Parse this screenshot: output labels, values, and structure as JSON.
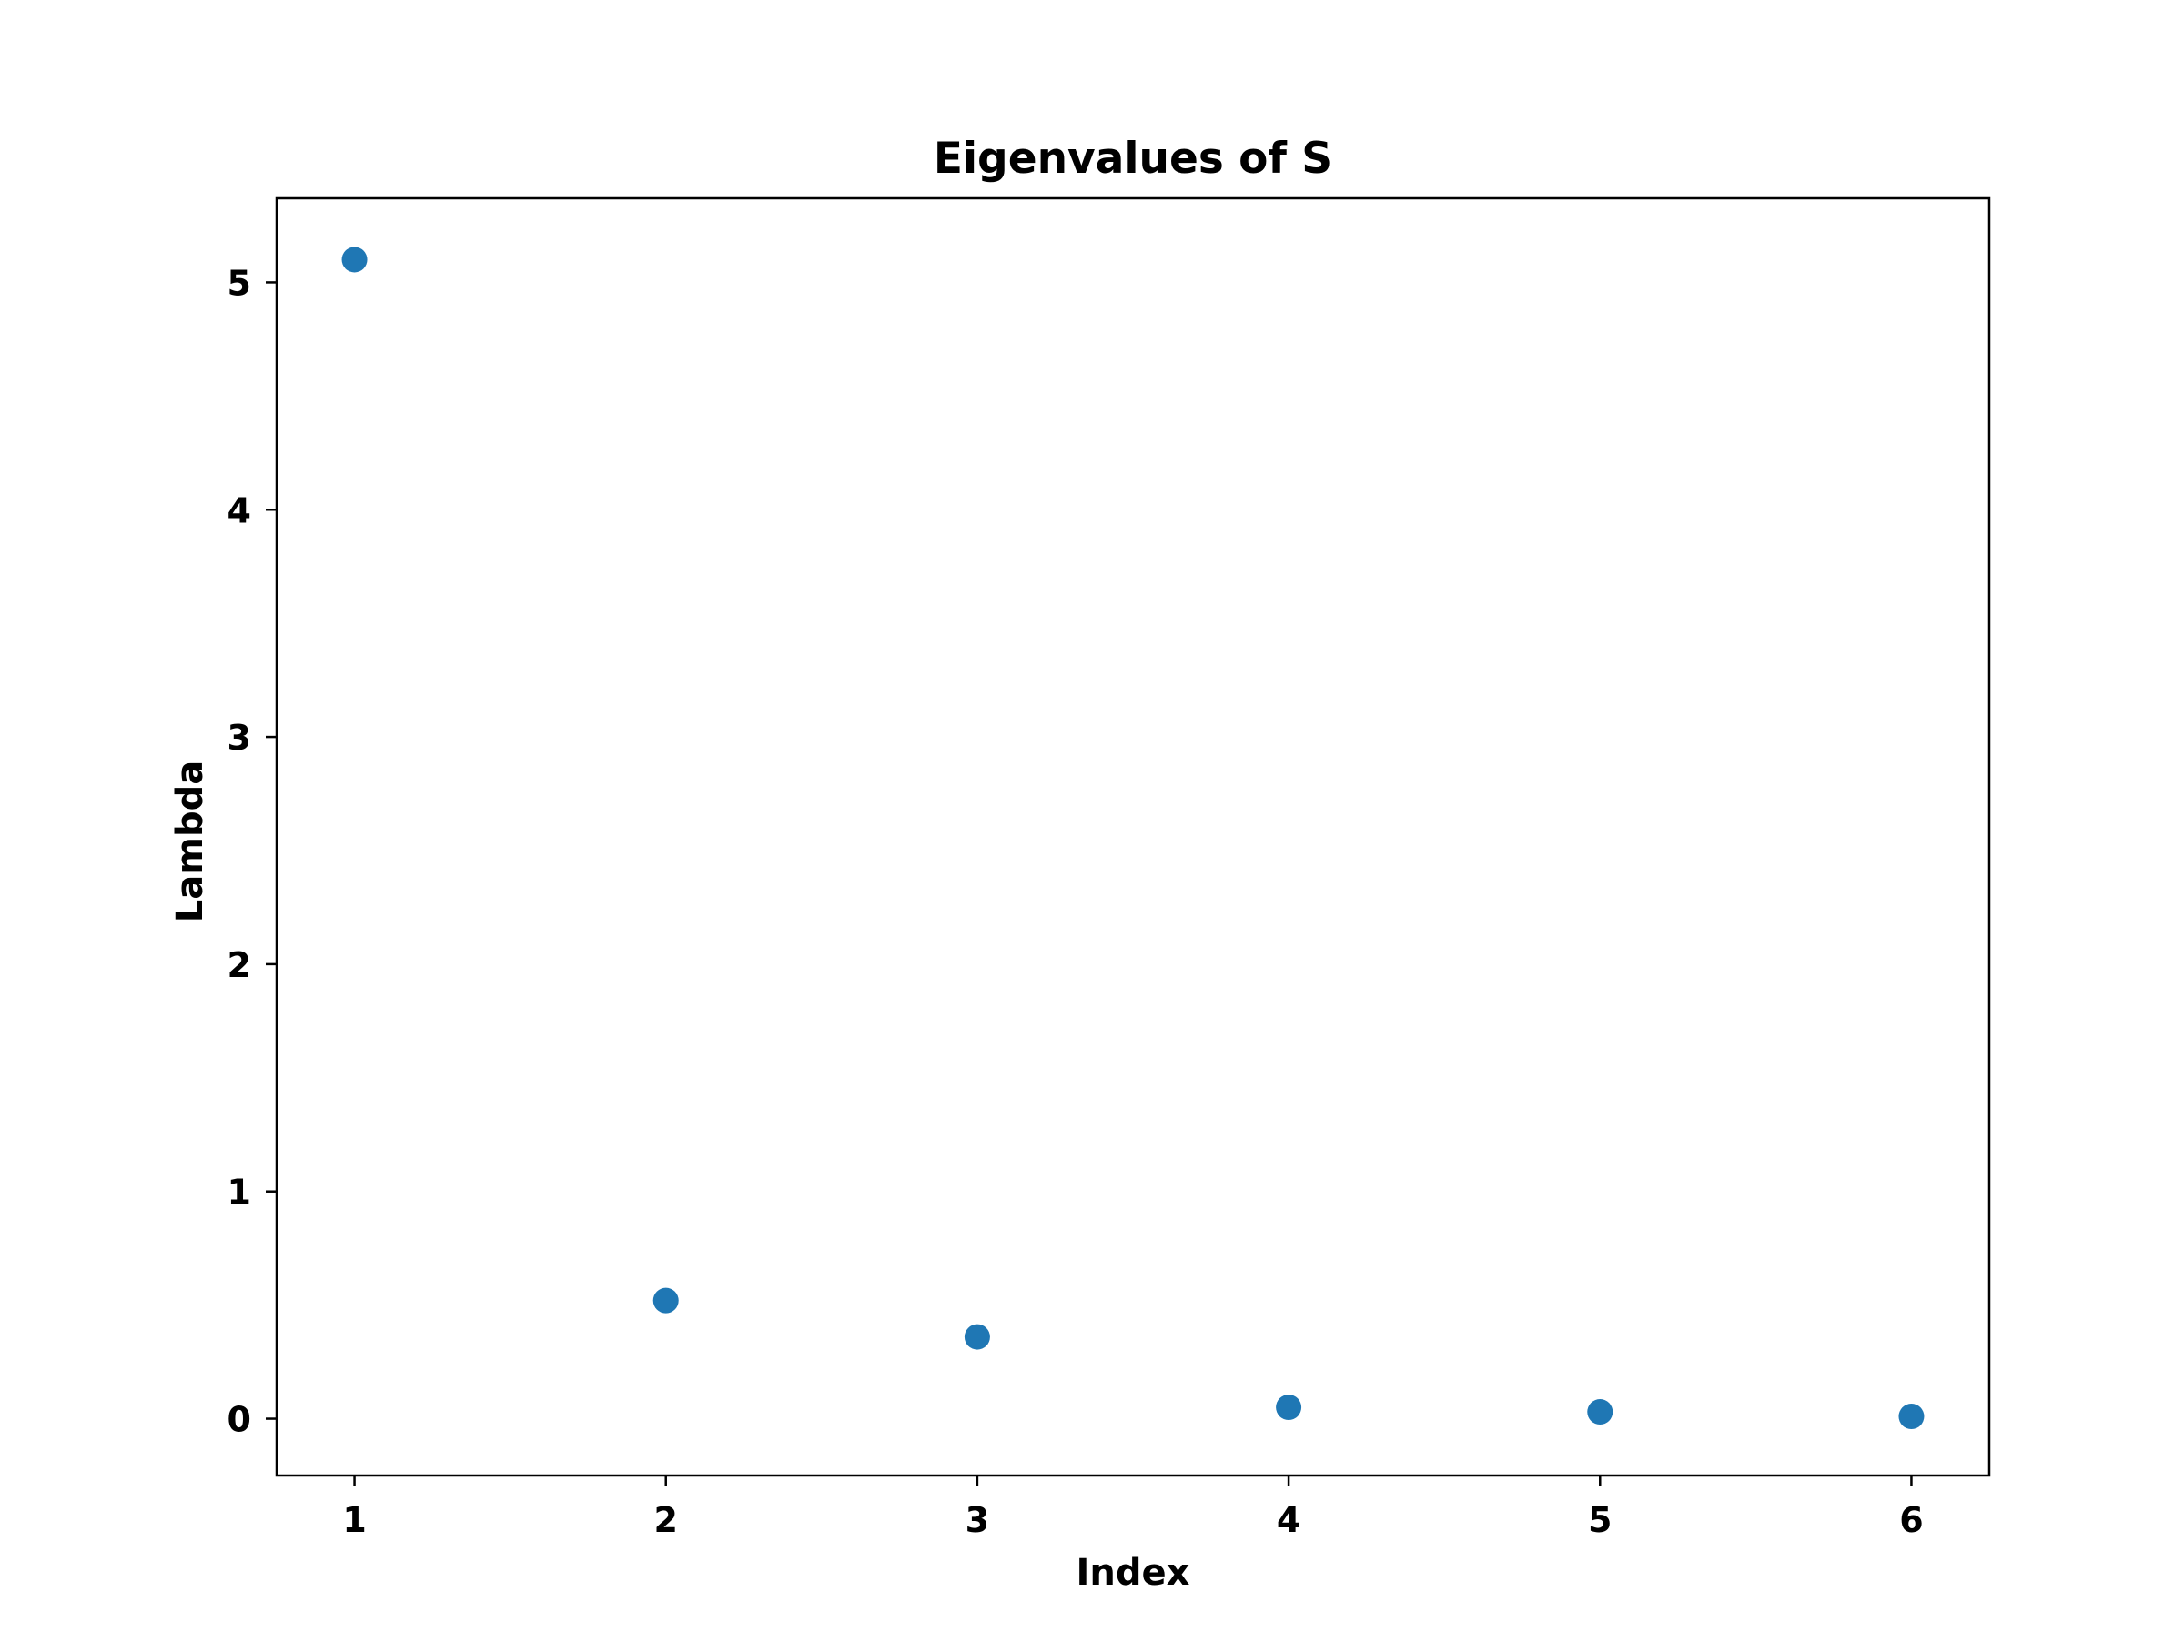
{
  "chart_data": {
    "type": "scatter",
    "title": "Eigenvalues of S",
    "xlabel": "Index",
    "ylabel": "Lambda",
    "x": [
      1,
      2,
      3,
      4,
      5,
      6
    ],
    "y": [
      5.1,
      0.52,
      0.36,
      0.05,
      0.03,
      0.01
    ],
    "xlim": [
      0.75,
      6.25
    ],
    "ylim": [
      -0.25,
      5.37
    ],
    "xticks": [
      1,
      2,
      3,
      4,
      5,
      6
    ],
    "yticks": [
      0,
      1,
      2,
      3,
      4,
      5
    ],
    "grid": false,
    "legend": "none",
    "marker_color": "#1f77b4"
  }
}
